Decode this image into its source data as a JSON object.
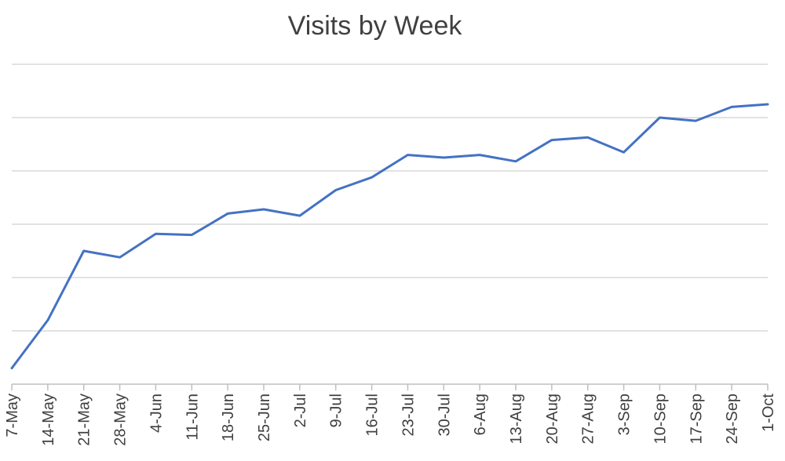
{
  "chart_data": {
    "type": "line",
    "title": "Visits by Week",
    "xlabel": "",
    "ylabel": "",
    "categories": [
      "7-May",
      "14-May",
      "21-May",
      "28-May",
      "4-Jun",
      "11-Jun",
      "18-Jun",
      "25-Jun",
      "2-Jul",
      "9-Jul",
      "16-Jul",
      "23-Jul",
      "30-Jul",
      "6-Aug",
      "13-Aug",
      "20-Aug",
      "27-Aug",
      "3-Sep",
      "10-Sep",
      "17-Sep",
      "24-Sep",
      "1-Oct"
    ],
    "series": [
      {
        "values": [
          0.3,
          1.2,
          2.5,
          2.38,
          2.82,
          2.8,
          3.2,
          3.28,
          3.16,
          3.64,
          3.88,
          4.3,
          4.25,
          4.3,
          4.18,
          4.58,
          4.63,
          4.35,
          5.0,
          4.94,
          5.2,
          5.25
        ]
      }
    ],
    "ylim": [
      0,
      6
    ],
    "y_ticks_shown": false,
    "grid": "horizontal",
    "line_color": "#4472C4",
    "grid_color": "#d9d9d9",
    "axis_color": "#bfbfbf"
  }
}
